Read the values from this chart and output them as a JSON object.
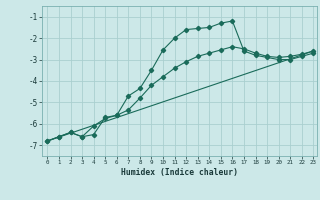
{
  "xlabel": "Humidex (Indice chaleur)",
  "bg_color": "#cce8e8",
  "grid_color": "#aacfcf",
  "line_color": "#1a6b5a",
  "xlim": [
    -0.5,
    23.3
  ],
  "ylim": [
    -7.5,
    -0.5
  ],
  "yticks": [
    -7,
    -6,
    -5,
    -4,
    -3,
    -2,
    -1
  ],
  "xticks": [
    0,
    1,
    2,
    3,
    4,
    5,
    6,
    7,
    8,
    9,
    10,
    11,
    12,
    13,
    14,
    15,
    16,
    17,
    18,
    19,
    20,
    21,
    22,
    23
  ],
  "line1_x": [
    0,
    1,
    2,
    3,
    4,
    5,
    6,
    7,
    8,
    9,
    10,
    11,
    12,
    13,
    14,
    15,
    16,
    17,
    18,
    19,
    20,
    21,
    22,
    23
  ],
  "line1_y": [
    -6.8,
    -6.6,
    -6.4,
    -6.6,
    -6.5,
    -5.7,
    -5.6,
    -4.7,
    -4.35,
    -3.5,
    -2.55,
    -2.0,
    -1.6,
    -1.55,
    -1.5,
    -1.3,
    -1.2,
    -2.6,
    -2.8,
    -2.9,
    -3.0,
    -3.0,
    -2.85,
    -2.7
  ],
  "line2_x": [
    0,
    1,
    2,
    3,
    4,
    5,
    6,
    7,
    8,
    9,
    10,
    11,
    12,
    13,
    14,
    15,
    16,
    17,
    18,
    19,
    20,
    21,
    22,
    23
  ],
  "line2_y": [
    -6.8,
    -6.6,
    -6.4,
    -6.6,
    -6.1,
    -5.75,
    -5.6,
    -5.35,
    -4.8,
    -4.2,
    -3.8,
    -3.4,
    -3.1,
    -2.85,
    -2.7,
    -2.55,
    -2.4,
    -2.5,
    -2.7,
    -2.85,
    -2.9,
    -2.85,
    -2.75,
    -2.6
  ],
  "line3_x": [
    0,
    23
  ],
  "line3_y": [
    -6.8,
    -2.6
  ]
}
